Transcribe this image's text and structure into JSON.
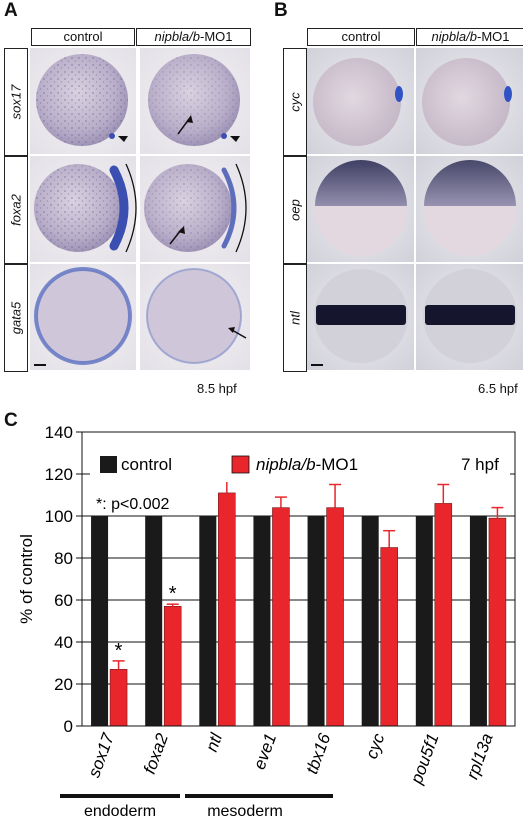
{
  "panel_a": {
    "letter": "A",
    "headers": [
      "control",
      "nipbla/b",
      "-MO1"
    ],
    "rows": [
      "sox17",
      "foxa2",
      "gata5"
    ],
    "stage": "8.5 hpf"
  },
  "panel_b": {
    "letter": "B",
    "headers": [
      "control",
      "nipbla/b",
      "-MO1"
    ],
    "rows": [
      "cyc",
      "oep",
      "ntl"
    ],
    "stage": "6.5 hpf"
  },
  "panel_c": {
    "letter": "C",
    "legend_control": "control",
    "legend_mo_italic": "nipbla/b",
    "legend_mo_rest": "-MO1",
    "stage": "7 hpf",
    "significance": "*: p<0.002",
    "group_endoderm": "endoderm",
    "group_mesoderm": "mesoderm"
  },
  "colors": {
    "control": "#1a1a1a",
    "mo": "#e8262b",
    "stain": "#3a4fb0"
  },
  "chart_data": {
    "type": "bar",
    "ylabel": "% of control",
    "ylim": [
      0,
      140
    ],
    "yticks": [
      0,
      20,
      40,
      60,
      80,
      100,
      120,
      140
    ],
    "categories": [
      "sox17",
      "foxa2",
      "ntl",
      "eve1",
      "tbx16",
      "cyc",
      "pou5f1",
      "rpl13a"
    ],
    "series": [
      {
        "name": "control",
        "values": [
          100,
          100,
          100,
          100,
          100,
          100,
          100,
          100
        ],
        "errors": [
          0,
          0,
          0,
          0,
          0,
          0,
          0,
          0
        ]
      },
      {
        "name": "nipbla/b-MO1",
        "values": [
          27,
          57,
          111,
          104,
          104,
          85,
          106,
          99
        ],
        "errors": [
          4,
          1,
          6,
          5,
          11,
          8,
          9,
          5
        ]
      }
    ],
    "significant": [
      "sox17",
      "foxa2"
    ],
    "grid": true
  }
}
